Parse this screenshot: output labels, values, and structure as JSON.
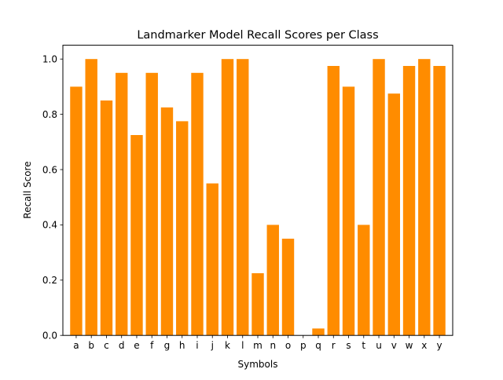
{
  "chart_data": {
    "type": "bar",
    "title": "Landmarker Model Recall Scores per Class",
    "xlabel": "Symbols",
    "ylabel": "Recall Score",
    "ylim": [
      0,
      1.05
    ],
    "yticks": [
      0.0,
      0.2,
      0.4,
      0.6,
      0.8,
      1.0
    ],
    "ytick_labels": [
      "0.0",
      "0.2",
      "0.4",
      "0.6",
      "0.8",
      "1.0"
    ],
    "grid": false,
    "bar_color": "#ff8c00",
    "categories": [
      "a",
      "b",
      "c",
      "d",
      "e",
      "f",
      "g",
      "h",
      "i",
      "j",
      "k",
      "l",
      "m",
      "n",
      "o",
      "p",
      "q",
      "r",
      "s",
      "t",
      "u",
      "v",
      "w",
      "x",
      "y"
    ],
    "values": [
      0.9,
      1.0,
      0.85,
      0.95,
      0.725,
      0.95,
      0.825,
      0.775,
      0.95,
      0.55,
      1.0,
      1.0,
      0.225,
      0.4,
      0.35,
      0.0,
      0.025,
      0.975,
      0.9,
      0.4,
      1.0,
      0.875,
      0.975,
      1.0,
      0.975
    ]
  }
}
